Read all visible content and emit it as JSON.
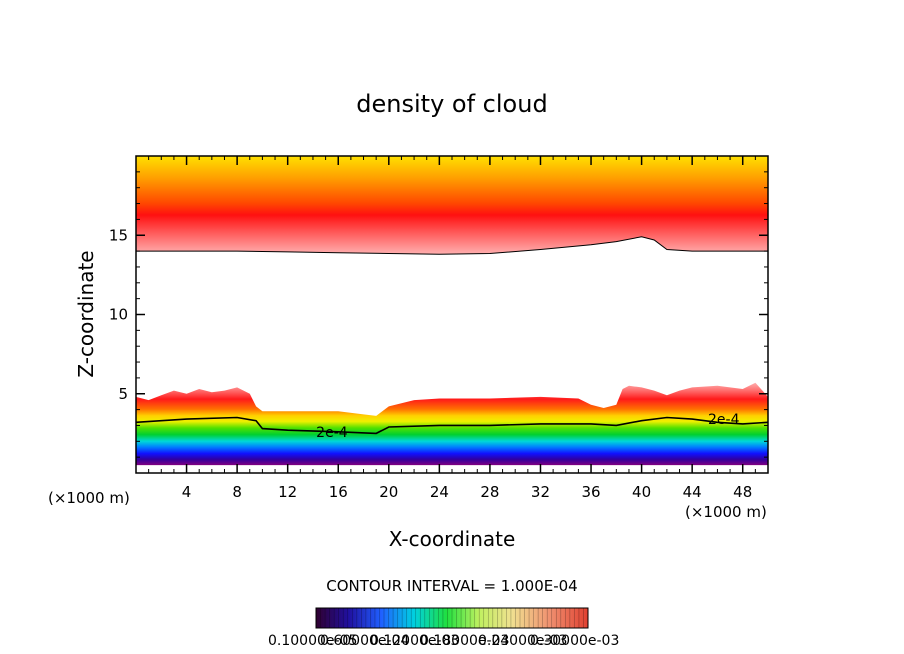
{
  "chart_data": {
    "type": "heatmap",
    "title": "density of cloud",
    "xlabel": "X-coordinate",
    "ylabel": "Z-coordinate",
    "x_unit_left": "(×1000 m)",
    "x_unit_right": "(×1000 m)",
    "xlim": [
      0,
      50
    ],
    "ylim": [
      0,
      20
    ],
    "x_ticks": [
      "4",
      "8",
      "12",
      "16",
      "20",
      "24",
      "28",
      "32",
      "36",
      "40",
      "44",
      "48"
    ],
    "x_tick_values": [
      4,
      8,
      12,
      16,
      20,
      24,
      28,
      32,
      36,
      40,
      44,
      48
    ],
    "y_ticks": [
      "5",
      "10",
      "15"
    ],
    "y_tick_values": [
      5,
      10,
      15
    ],
    "contour_interval_text": "CONTOUR INTERVAL = 1.000E-04",
    "contour_labels": [
      {
        "text": "2e-4",
        "x": 15.5,
        "z": 2.6
      },
      {
        "text": "2e-4",
        "x": 46.5,
        "z": 3.4
      }
    ],
    "colorbar_text": "0.1000e-05",
    "colorbar_labels": [
      "0.10000e-05",
      "0.60000e-04",
      "0.12000e-03",
      "0.18000e-03",
      "0.24000e-03",
      "0.30000e-03"
    ],
    "upper_layer": {
      "top_z": 20.0,
      "peak_z": 15.8,
      "base_x": [
        0,
        4,
        8,
        12,
        16,
        20,
        24,
        28,
        32,
        36,
        38,
        40,
        41,
        42,
        44,
        48,
        50
      ],
      "base_z": [
        14.0,
        14.0,
        14.0,
        13.95,
        13.9,
        13.85,
        13.8,
        13.85,
        14.1,
        14.4,
        14.6,
        14.9,
        14.7,
        14.1,
        14.0,
        14.0,
        14.0
      ]
    },
    "lower_layer": {
      "bottom_z": 0.5,
      "top_x": [
        0,
        1,
        2,
        3,
        4,
        5,
        6,
        7,
        8,
        9,
        9.5,
        10,
        12,
        14,
        16,
        18,
        19,
        20,
        22,
        24,
        28,
        32,
        35,
        36,
        37,
        38,
        38.5,
        39,
        40,
        41,
        42,
        43,
        44,
        46,
        48,
        49,
        50
      ],
      "top_z": [
        4.8,
        4.6,
        4.9,
        5.2,
        5.0,
        5.3,
        5.1,
        5.2,
        5.4,
        5.0,
        4.2,
        3.9,
        3.9,
        3.9,
        3.9,
        3.7,
        3.6,
        4.2,
        4.6,
        4.7,
        4.7,
        4.8,
        4.7,
        4.3,
        4.1,
        4.3,
        5.3,
        5.5,
        5.4,
        5.2,
        4.9,
        5.2,
        5.4,
        5.5,
        5.3,
        5.7,
        4.8
      ],
      "contour_2e4_x": [
        0,
        4,
        8,
        9.5,
        10,
        12,
        16,
        19,
        20,
        24,
        28,
        32,
        36,
        38,
        40,
        42,
        44,
        46,
        48,
        50
      ],
      "contour_2e4_z": [
        3.2,
        3.4,
        3.5,
        3.3,
        2.8,
        2.7,
        2.6,
        2.5,
        2.9,
        3.0,
        3.0,
        3.1,
        3.1,
        3.0,
        3.3,
        3.5,
        3.4,
        3.2,
        3.1,
        3.2
      ]
    }
  }
}
